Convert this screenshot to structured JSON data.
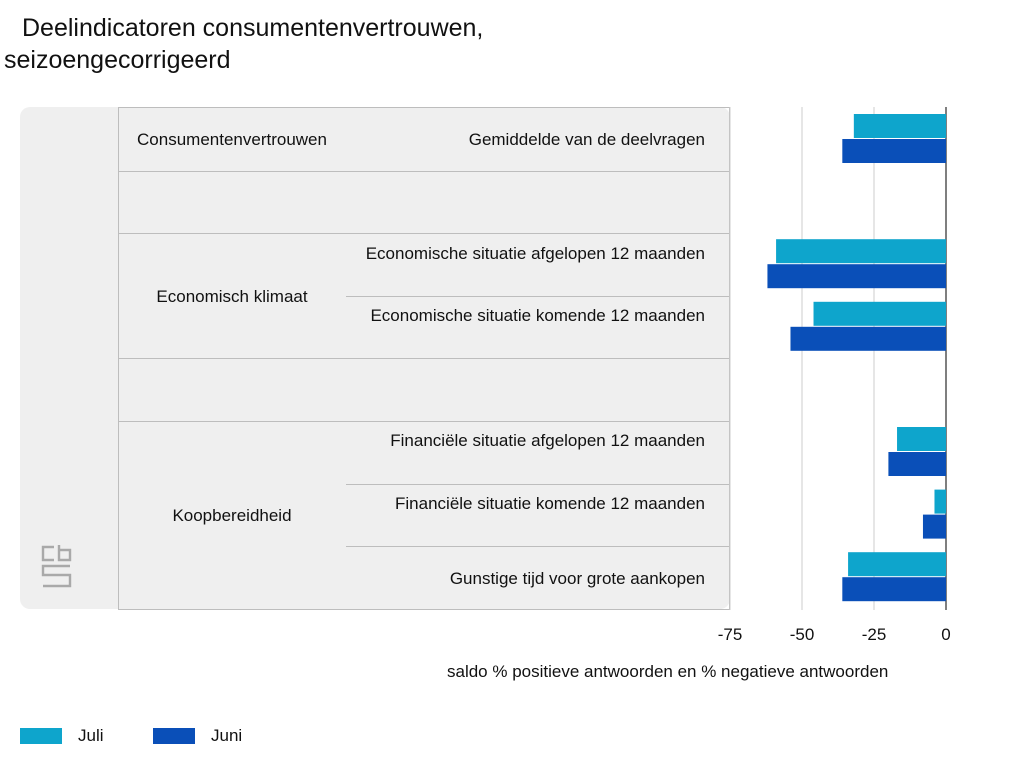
{
  "title_line1": "Deelindicatoren consumentenvertrouwen,",
  "title_line2": "seizoengecorrigeerd",
  "colors": {
    "juli": "#0ea5cc",
    "juni": "#0a4fb8",
    "panel": "#efefef",
    "grid": "#cccccc"
  },
  "logo_icon": "cbs-logo-icon",
  "chart_data": {
    "type": "bar",
    "orientation": "horizontal",
    "xlabel": "saldo % positieve antwoorden en % negatieve antwoorden",
    "xlim": [
      -75,
      0
    ],
    "xticks": [
      -75,
      -50,
      -25,
      0
    ],
    "xtick_labels": [
      "-75",
      "-50",
      "-25",
      "0"
    ],
    "grid": true,
    "legend_position": "bottom-left",
    "groups": [
      {
        "label": "Consumentenvertrouwen",
        "start": 0,
        "end": 0
      },
      {
        "label": "Economisch klimaat",
        "start": 2,
        "end": 3
      },
      {
        "label": "Koopbereidheid",
        "start": 5,
        "end": 7
      }
    ],
    "categories": [
      "Gemiddelde van de deelvragen",
      "",
      "Economische situatie afgelopen 12 maanden",
      "Economische situatie komende 12 maanden",
      "",
      "Financiële situatie afgelopen 12 maanden",
      "Financiële situatie komende 12 maanden",
      "Gunstige tijd voor grote aankopen"
    ],
    "series": [
      {
        "name": "Juli",
        "values": [
          -32,
          null,
          -59,
          -46,
          null,
          -17,
          -4,
          -34
        ]
      },
      {
        "name": "Juni",
        "values": [
          -36,
          null,
          -62,
          -54,
          null,
          -20,
          -8,
          -36
        ]
      }
    ]
  }
}
